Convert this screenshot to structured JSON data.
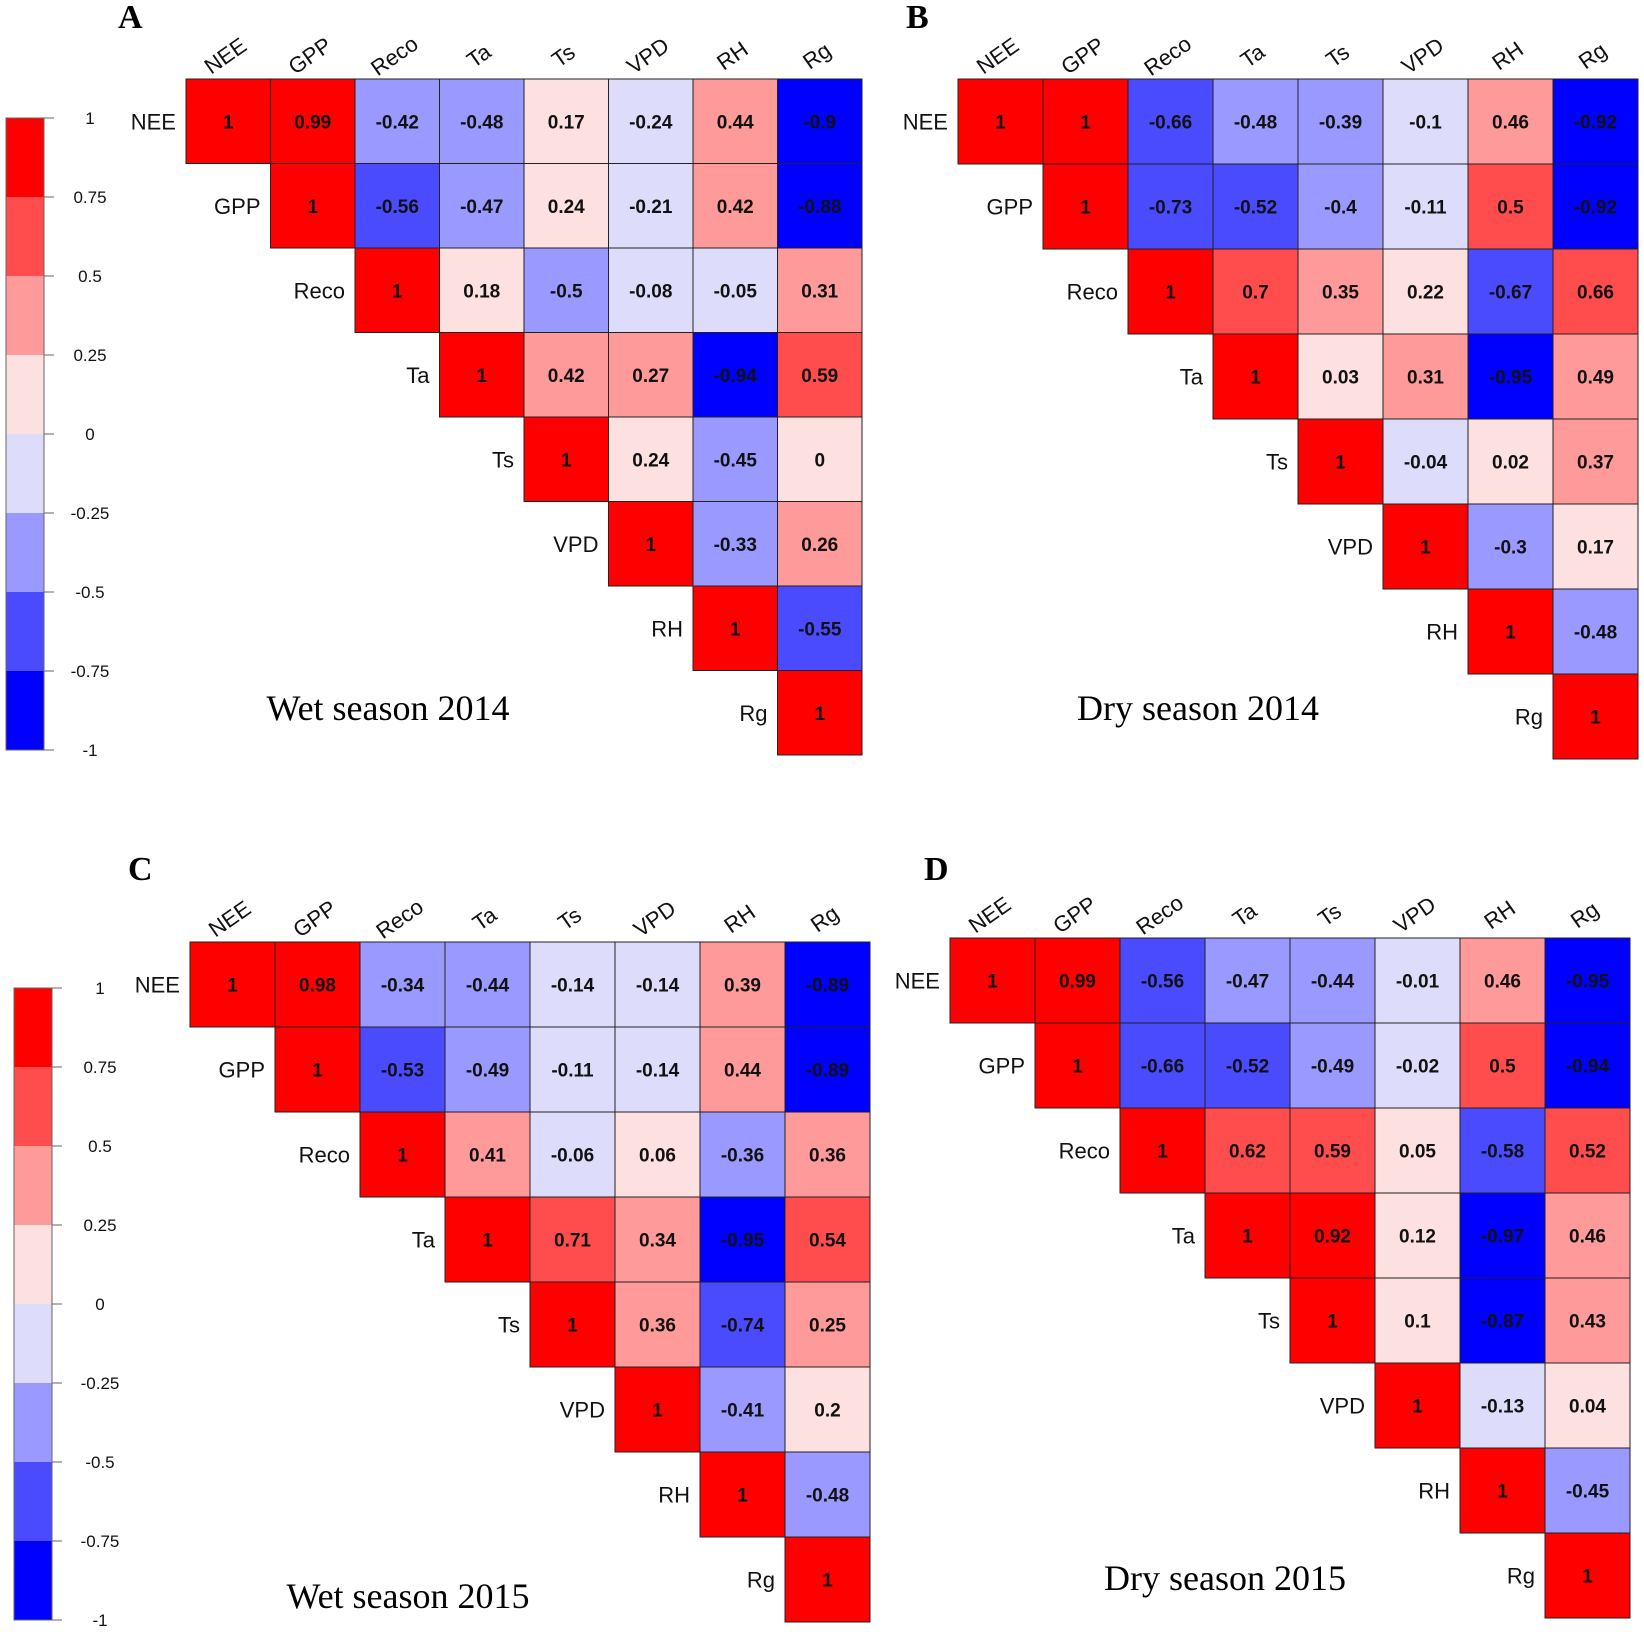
{
  "chart_data": [
    {
      "type": "heatmap",
      "panel_label": "A",
      "caption": "Wet season 2014",
      "variables": [
        "NEE",
        "GPP",
        "Reco",
        "Ta",
        "Ts",
        "VPD",
        "RH",
        "Rg"
      ],
      "matrix": [
        [
          1,
          0.99,
          -0.42,
          -0.48,
          0.17,
          -0.24,
          0.44,
          -0.9
        ],
        [
          null,
          1,
          -0.56,
          -0.47,
          0.24,
          -0.21,
          0.42,
          -0.88
        ],
        [
          null,
          null,
          1,
          0.18,
          -0.5,
          -0.08,
          -0.05,
          0.31
        ],
        [
          null,
          null,
          null,
          1,
          0.42,
          0.27,
          -0.94,
          0.59
        ],
        [
          null,
          null,
          null,
          null,
          1,
          0.24,
          -0.45,
          0
        ],
        [
          null,
          null,
          null,
          null,
          null,
          1,
          -0.33,
          0.26
        ],
        [
          null,
          null,
          null,
          null,
          null,
          null,
          1,
          -0.55
        ],
        [
          null,
          null,
          null,
          null,
          null,
          null,
          null,
          1
        ]
      ],
      "colorbar_ticks": [
        "1",
        "0.75",
        "0.5",
        "0.25",
        "0",
        "-0.25",
        "-0.5",
        "-0.75",
        "-1"
      ]
    },
    {
      "type": "heatmap",
      "panel_label": "B",
      "caption": "Dry season 2014",
      "variables": [
        "NEE",
        "GPP",
        "Reco",
        "Ta",
        "Ts",
        "VPD",
        "RH",
        "Rg"
      ],
      "matrix": [
        [
          1,
          1,
          -0.66,
          -0.48,
          -0.39,
          -0.1,
          0.46,
          -0.92
        ],
        [
          null,
          1,
          -0.73,
          -0.52,
          -0.4,
          -0.11,
          0.5,
          -0.92
        ],
        [
          null,
          null,
          1,
          0.7,
          0.35,
          0.22,
          -0.67,
          0.66
        ],
        [
          null,
          null,
          null,
          1,
          0.03,
          0.31,
          -0.95,
          0.49
        ],
        [
          null,
          null,
          null,
          null,
          1,
          -0.04,
          0.02,
          0.37
        ],
        [
          null,
          null,
          null,
          null,
          null,
          1,
          -0.3,
          0.17
        ],
        [
          null,
          null,
          null,
          null,
          null,
          null,
          1,
          -0.48
        ],
        [
          null,
          null,
          null,
          null,
          null,
          null,
          null,
          1
        ]
      ]
    },
    {
      "type": "heatmap",
      "panel_label": "C",
      "caption": "Wet season 2015",
      "variables": [
        "NEE",
        "GPP",
        "Reco",
        "Ta",
        "Ts",
        "VPD",
        "RH",
        "Rg"
      ],
      "matrix": [
        [
          1,
          0.98,
          -0.34,
          -0.44,
          -0.14,
          -0.14,
          0.39,
          -0.89
        ],
        [
          null,
          1,
          -0.53,
          -0.49,
          -0.11,
          -0.14,
          0.44,
          -0.89
        ],
        [
          null,
          null,
          1,
          0.41,
          -0.06,
          0.06,
          -0.36,
          0.36
        ],
        [
          null,
          null,
          null,
          1,
          0.71,
          0.34,
          -0.95,
          0.54
        ],
        [
          null,
          null,
          null,
          null,
          1,
          0.36,
          -0.74,
          0.25
        ],
        [
          null,
          null,
          null,
          null,
          null,
          1,
          -0.41,
          0.2
        ],
        [
          null,
          null,
          null,
          null,
          null,
          null,
          1,
          -0.48
        ],
        [
          null,
          null,
          null,
          null,
          null,
          null,
          null,
          1
        ]
      ],
      "colorbar_ticks": [
        "1",
        "0.75",
        "0.5",
        "0.25",
        "0",
        "-0.25",
        "-0.5",
        "-0.75",
        "-1"
      ]
    },
    {
      "type": "heatmap",
      "panel_label": "D",
      "caption": "Dry season 2015",
      "variables": [
        "NEE",
        "GPP",
        "Reco",
        "Ta",
        "Ts",
        "VPD",
        "RH",
        "Rg"
      ],
      "matrix": [
        [
          1,
          0.99,
          -0.56,
          -0.47,
          -0.44,
          -0.01,
          0.46,
          -0.95
        ],
        [
          null,
          1,
          -0.66,
          -0.52,
          -0.49,
          -0.02,
          0.5,
          -0.94
        ],
        [
          null,
          null,
          1,
          0.62,
          0.59,
          0.05,
          -0.58,
          0.52
        ],
        [
          null,
          null,
          null,
          1,
          0.92,
          0.12,
          -0.97,
          0.46
        ],
        [
          null,
          null,
          null,
          null,
          1,
          0.1,
          -0.87,
          0.43
        ],
        [
          null,
          null,
          null,
          null,
          null,
          1,
          -0.13,
          0.04
        ],
        [
          null,
          null,
          null,
          null,
          null,
          null,
          1,
          -0.45
        ],
        [
          null,
          null,
          null,
          null,
          null,
          null,
          null,
          1
        ]
      ]
    }
  ],
  "colors": {
    "bins": [
      "#0000ff",
      "#4a4aff",
      "#9999ff",
      "#ddddfb",
      "#fde0e0",
      "#ff9a9a",
      "#ff4d4d",
      "#ff0000"
    ],
    "border": "#222222"
  }
}
